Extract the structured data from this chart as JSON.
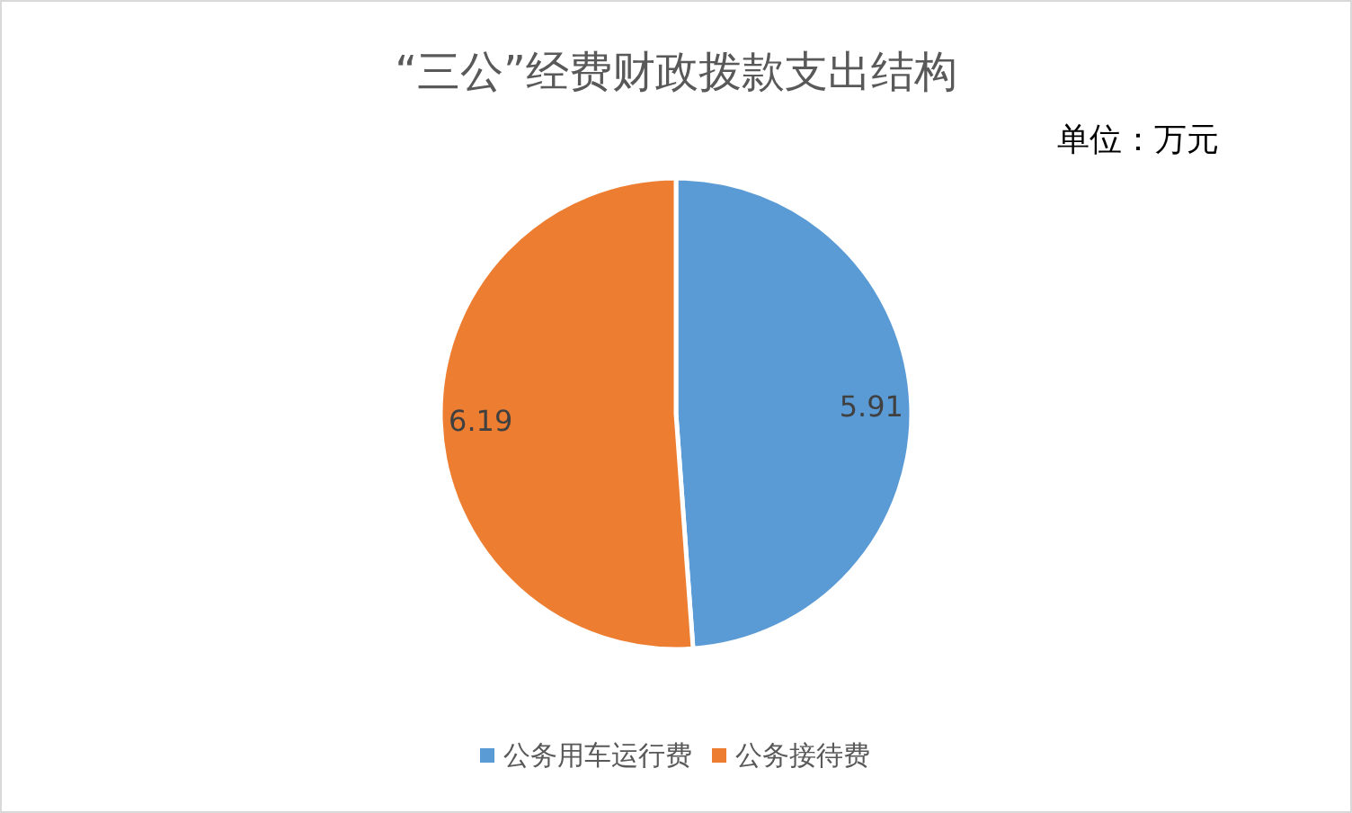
{
  "chart_data": {
    "type": "pie",
    "title": "“三公”经费财政拨款支出结构",
    "annotations": [
      "单位：万元"
    ],
    "categories": [
      "公务用车运行费",
      "公务接待费"
    ],
    "values": [
      5.91,
      6.19
    ],
    "colors": [
      "#5b9bd5",
      "#ed7d31"
    ],
    "data_labels": true,
    "legend": "bottom"
  }
}
